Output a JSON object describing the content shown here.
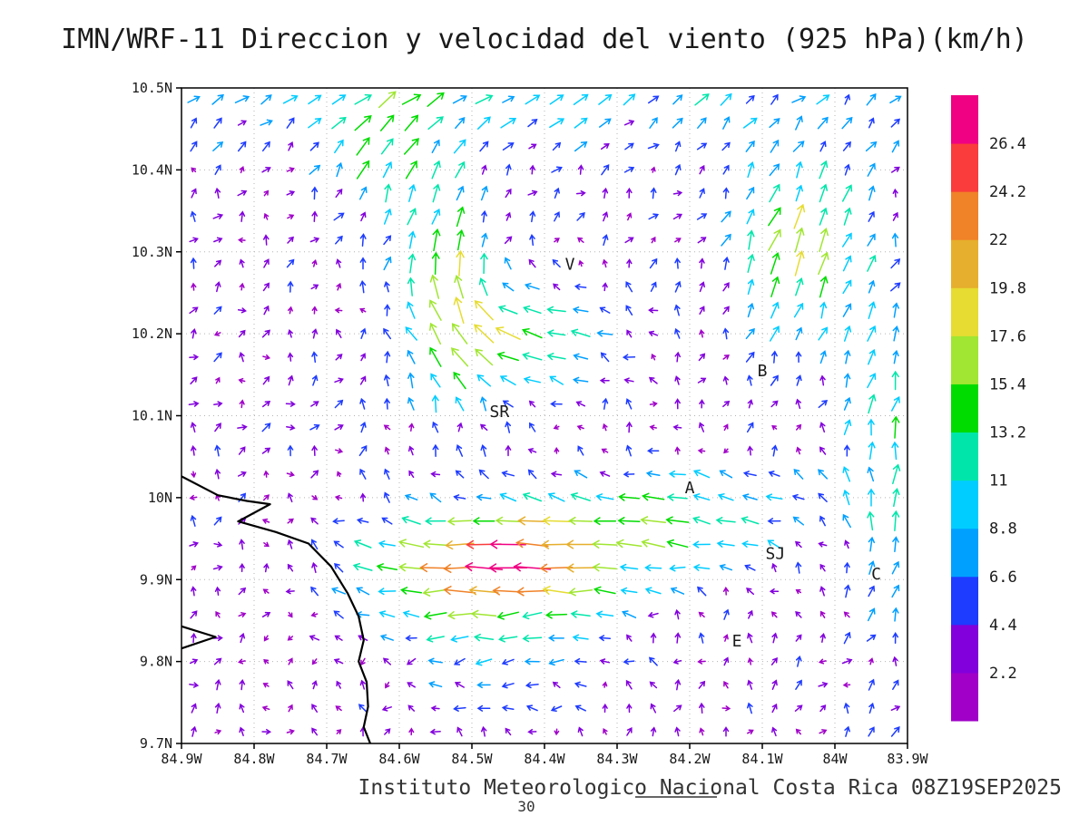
{
  "title": "IMN/WRF-11 Direccion y velocidad del viento (925 hPa)(km/h)",
  "footer": {
    "text": "Instituto Meteorologico Nacional Costa Rica 08Z19SEP2025",
    "frame_number": "30"
  },
  "chart_data": {
    "type": "vector_field",
    "model": "IMN/WRF-11",
    "variable": "Direccion y velocidad del viento",
    "level": "925 hPa",
    "units": "km/h",
    "title": "IMN/WRF-11 Direccion y velocidad del viento (925 hPa)(km/h)",
    "valid_time": "08Z19SEP2025",
    "source": "Instituto Meteorologico Nacional Costa Rica",
    "grid_on": true,
    "x_axis": {
      "min": -84.9,
      "max": -83.9,
      "ticks": [
        {
          "value": -84.9,
          "label": "84.9W"
        },
        {
          "value": -84.8,
          "label": "84.8W"
        },
        {
          "value": -84.7,
          "label": "84.7W"
        },
        {
          "value": -84.6,
          "label": "84.6W"
        },
        {
          "value": -84.5,
          "label": "84.5W"
        },
        {
          "value": -84.4,
          "label": "84.4W"
        },
        {
          "value": -84.3,
          "label": "84.3W"
        },
        {
          "value": -84.2,
          "label": "84.2W"
        },
        {
          "value": -84.1,
          "label": "84.1W"
        },
        {
          "value": -84.0,
          "label": "84W"
        },
        {
          "value": -83.9,
          "label": "83.9W"
        }
      ]
    },
    "y_axis": {
      "min": 9.7,
      "max": 10.5,
      "ticks": [
        {
          "value": 10.5,
          "label": "10.5N"
        },
        {
          "value": 10.4,
          "label": "10.4N"
        },
        {
          "value": 10.3,
          "label": "10.3N"
        },
        {
          "value": 10.2,
          "label": "10.2N"
        },
        {
          "value": 10.1,
          "label": "10.1N"
        },
        {
          "value": 10.0,
          "label": "10N"
        },
        {
          "value": 9.9,
          "label": "9.9N"
        },
        {
          "value": 9.8,
          "label": "9.8N"
        },
        {
          "value": 9.7,
          "label": "9.7N"
        }
      ]
    },
    "colorbar": {
      "position": "right",
      "levels": [
        2.2,
        4.4,
        6.6,
        8.8,
        11,
        13.2,
        15.4,
        17.6,
        19.8,
        22,
        24.2,
        26.4
      ],
      "labels": [
        "2.2",
        "4.4",
        "6.6",
        "8.8",
        "11",
        "13.2",
        "15.4",
        "17.6",
        "19.8",
        "22",
        "24.2",
        "26.4"
      ],
      "colors": [
        "#A000C8",
        "#8200DC",
        "#1E3CFF",
        "#00A0FF",
        "#00CDFF",
        "#00E6AA",
        "#00DC00",
        "#A0E632",
        "#E6DC32",
        "#E6AF2D",
        "#F08228",
        "#FA3C3C",
        "#F00082"
      ]
    },
    "stations": [
      {
        "label": "V",
        "lon": -84.365,
        "lat": 10.285
      },
      {
        "label": "B",
        "lon": -84.1,
        "lat": 10.155
      },
      {
        "label": "SR",
        "lon": -84.462,
        "lat": 10.105
      },
      {
        "label": "A",
        "lon": -84.2,
        "lat": 10.012
      },
      {
        "label": "SJ",
        "lon": -84.082,
        "lat": 9.932
      },
      {
        "label": "C",
        "lon": -83.943,
        "lat": 9.907
      },
      {
        "label": "E",
        "lon": -84.135,
        "lat": 9.825
      }
    ],
    "coastlines": [
      [
        [
          -84.9,
          10.026
        ],
        [
          -84.85,
          10.003
        ],
        [
          -84.81,
          9.996
        ],
        [
          -84.778,
          9.992
        ],
        [
          -84.822,
          9.971
        ],
        [
          -84.77,
          9.958
        ],
        [
          -84.725,
          9.944
        ],
        [
          -84.694,
          9.916
        ],
        [
          -84.671,
          9.883
        ],
        [
          -84.656,
          9.855
        ],
        [
          -84.649,
          9.826
        ],
        [
          -84.656,
          9.8
        ],
        [
          -84.645,
          9.775
        ],
        [
          -84.643,
          9.745
        ],
        [
          -84.649,
          9.72
        ],
        [
          -84.64,
          9.7
        ]
      ],
      [
        [
          -84.9,
          9.843
        ],
        [
          -84.853,
          9.83
        ],
        [
          -84.9,
          9.816
        ]
      ]
    ],
    "wind_field": {
      "grid": {
        "nx": 30,
        "ny": 28,
        "lon_min": -84.9,
        "lon_max": -83.9,
        "lat_min": 9.7,
        "lat_max": 10.5
      },
      "base": {
        "u": 1.3,
        "v": 2.2
      },
      "noise": 5.5,
      "features": [
        {
          "name": "westward-jet-south",
          "lon": -84.47,
          "lat": 9.92,
          "sx": 0.13,
          "sy": 0.05,
          "u": -24,
          "v": -1
        },
        {
          "name": "westward-band-north",
          "lon": -84.44,
          "lat": 10.19,
          "sx": 0.1,
          "sy": 0.05,
          "u": -17,
          "v": 1
        },
        {
          "name": "northward-band",
          "lon": -84.53,
          "lat": 10.24,
          "sx": 0.05,
          "sy": 0.09,
          "u": 0,
          "v": 15
        },
        {
          "name": "westward-band-central",
          "lon": -84.22,
          "lat": 9.98,
          "sx": 0.16,
          "sy": 0.05,
          "u": -13,
          "v": 0
        },
        {
          "name": "northeast-flow-upper-right",
          "lon": -84.05,
          "lat": 10.31,
          "sx": 0.07,
          "sy": 0.08,
          "u": 5,
          "v": 13
        },
        {
          "name": "east-flow-top",
          "lon": -84.45,
          "lat": 10.49,
          "sx": 0.35,
          "sy": 0.05,
          "u": 7,
          "v": 3
        },
        {
          "name": "southwest-flow-lower",
          "lon": -84.48,
          "lat": 9.81,
          "sx": 0.14,
          "sy": 0.07,
          "u": -8,
          "v": -3
        },
        {
          "name": "north-flow-right-edge",
          "lon": -83.92,
          "lat": 10.05,
          "sx": 0.05,
          "sy": 0.12,
          "u": 1,
          "v": 10
        },
        {
          "name": "northeast-flow-left-upper",
          "lon": -84.62,
          "lat": 10.42,
          "sx": 0.06,
          "sy": 0.06,
          "u": 4,
          "v": 8
        }
      ]
    }
  }
}
